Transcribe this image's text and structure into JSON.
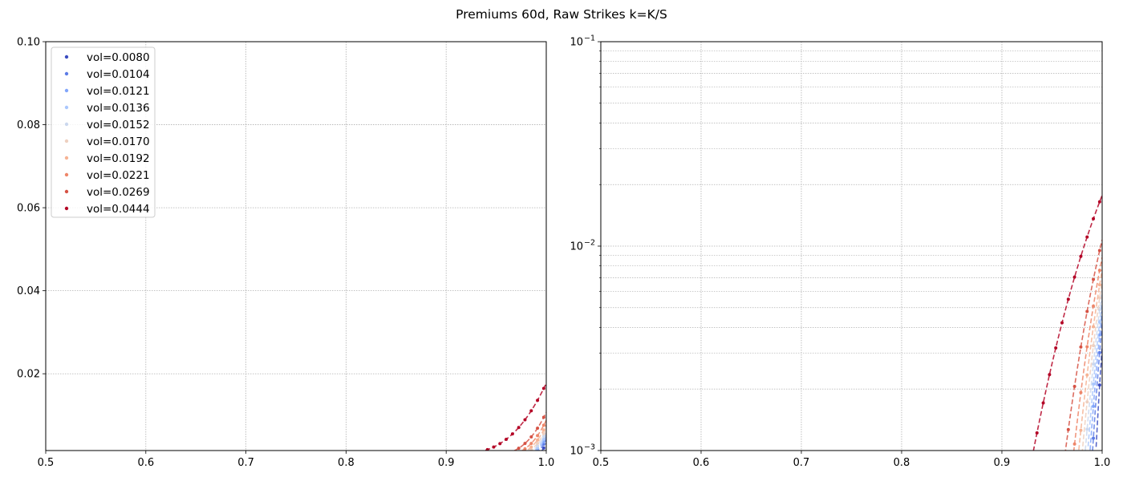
{
  "title": "Premiums 60d, Raw Strikes k=K/S",
  "chart_data": [
    {
      "type": "scatter",
      "yscale": "linear",
      "xlim": [
        0.5,
        1.0
      ],
      "ylim": [
        0.0015,
        0.1
      ],
      "xticks": [
        "0.5",
        "0.6",
        "0.7",
        "0.8",
        "0.9",
        "1.0"
      ],
      "yticks": [
        "0.02",
        "0.04",
        "0.06",
        "0.08",
        "0.10"
      ],
      "grid": true,
      "legend_position": "upper left",
      "series_style": "markers with dashed fitted lines",
      "series": [
        {
          "name": "vol=0.0080",
          "color": "#3b4cc0",
          "sigma": 0.008
        },
        {
          "name": "vol=0.0104",
          "color": "#5d7ce6",
          "sigma": 0.0104
        },
        {
          "name": "vol=0.0121",
          "color": "#82a6fb",
          "sigma": 0.0121
        },
        {
          "name": "vol=0.0136",
          "color": "#aac7fd",
          "sigma": 0.0136
        },
        {
          "name": "vol=0.0152",
          "color": "#cbd8ee",
          "sigma": 0.0152
        },
        {
          "name": "vol=0.0170",
          "color": "#eed0c0",
          "sigma": 0.017
        },
        {
          "name": "vol=0.0192",
          "color": "#f6b394",
          "sigma": 0.0192
        },
        {
          "name": "vol=0.0221",
          "color": "#ee8669",
          "sigma": 0.0221
        },
        {
          "name": "vol=0.0269",
          "color": "#d65244",
          "sigma": 0.0269
        },
        {
          "name": "vol=0.0444",
          "color": "#b40426",
          "sigma": 0.0444
        }
      ]
    },
    {
      "type": "scatter",
      "yscale": "log",
      "xlim": [
        0.5,
        1.0
      ],
      "ylim": [
        0.001,
        0.1
      ],
      "xticks": [
        "0.5",
        "0.6",
        "0.7",
        "0.8",
        "0.9",
        "1.0"
      ],
      "yticks": [
        {
          "base": "10",
          "exp": "−1"
        },
        {
          "base": "10",
          "exp": "−2"
        },
        {
          "base": "10",
          "exp": "−3"
        }
      ],
      "grid": true,
      "series_style": "markers with dashed fitted lines",
      "series_ref": "same series as left panel"
    }
  ]
}
